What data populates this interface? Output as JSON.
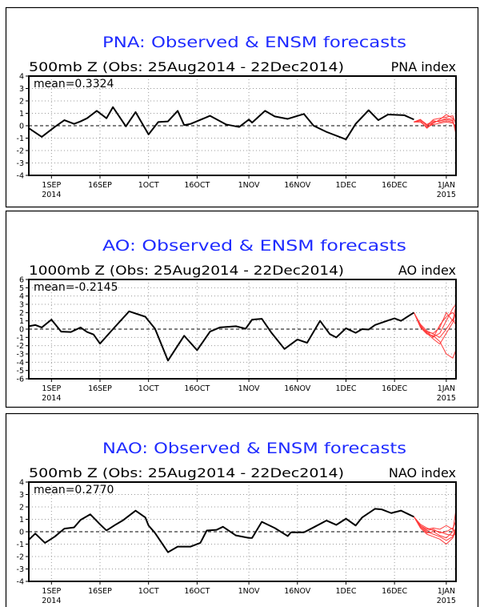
{
  "chart_data": [
    {
      "type": "line",
      "title": "PNA: Observed & ENSM forecasts",
      "subtitle_left": "500mb Z (Obs: 25Aug2014 - 22Dec2014)",
      "subtitle_right": "PNA index",
      "annotation": "mean=0.3324",
      "ylim": [
        -4,
        4
      ],
      "y_ticks": [
        -4,
        -3,
        -2,
        -1,
        0,
        1,
        2,
        3,
        4
      ],
      "xlim": [
        "2014-08-25",
        "2015-01-04"
      ],
      "x_ticks": [
        {
          "date": "2014-09-01",
          "label": "1SEP",
          "year": "2014"
        },
        {
          "date": "2014-09-16",
          "label": "16SEP"
        },
        {
          "date": "2014-10-01",
          "label": "1OCT"
        },
        {
          "date": "2014-10-16",
          "label": "16OCT"
        },
        {
          "date": "2014-11-01",
          "label": "1NOV"
        },
        {
          "date": "2014-11-16",
          "label": "16NOV"
        },
        {
          "date": "2014-12-01",
          "label": "1DEC"
        },
        {
          "date": "2014-12-16",
          "label": "16DEC"
        },
        {
          "date": "2015-01-01",
          "label": "1JAN",
          "year": "2015"
        }
      ],
      "grid": true,
      "observed_color": "#000000",
      "forecast_color": "#ff3b3b",
      "observed": [
        [
          "2014-08-25",
          -0.2
        ],
        [
          "2014-08-29",
          -0.9
        ],
        [
          "2014-09-02",
          -0.1
        ],
        [
          "2014-09-05",
          0.45
        ],
        [
          "2014-09-08",
          0.15
        ],
        [
          "2014-09-10",
          0.35
        ],
        [
          "2014-09-12",
          0.6
        ],
        [
          "2014-09-15",
          1.2
        ],
        [
          "2014-09-18",
          0.6
        ],
        [
          "2014-09-20",
          1.5
        ],
        [
          "2014-09-24",
          -0.05
        ],
        [
          "2014-09-27",
          1.1
        ],
        [
          "2014-10-01",
          -0.7
        ],
        [
          "2014-10-04",
          0.3
        ],
        [
          "2014-10-07",
          0.35
        ],
        [
          "2014-10-10",
          1.2
        ],
        [
          "2014-10-12",
          0.05
        ],
        [
          "2014-10-14",
          0.15
        ],
        [
          "2014-10-20",
          0.8
        ],
        [
          "2014-10-25",
          0.1
        ],
        [
          "2014-10-29",
          -0.1
        ],
        [
          "2014-11-01",
          0.5
        ],
        [
          "2014-11-02",
          0.25
        ],
        [
          "2014-11-06",
          1.2
        ],
        [
          "2014-11-09",
          0.75
        ],
        [
          "2014-11-13",
          0.55
        ],
        [
          "2014-11-18",
          0.95
        ],
        [
          "2014-11-21",
          0.0
        ],
        [
          "2014-11-25",
          -0.5
        ],
        [
          "2014-12-01",
          -1.1
        ],
        [
          "2014-12-04",
          0.15
        ],
        [
          "2014-12-08",
          1.25
        ],
        [
          "2014-12-11",
          0.45
        ],
        [
          "2014-12-14",
          0.9
        ],
        [
          "2014-12-19",
          0.85
        ],
        [
          "2014-12-22",
          0.5
        ]
      ],
      "forecast_dates": [
        "2014-12-22",
        "2014-12-24",
        "2014-12-26",
        "2014-12-28",
        "2014-12-30",
        "2015-01-01",
        "2015-01-03",
        "2015-01-04"
      ],
      "forecast_members": [
        [
          0.3,
          0.5,
          0.0,
          0.3,
          0.4,
          0.6,
          0.5,
          -0.7
        ],
        [
          0.3,
          0.4,
          -0.2,
          0.2,
          0.5,
          0.9,
          0.6,
          0.3
        ],
        [
          0.3,
          0.5,
          0.1,
          0.4,
          0.3,
          0.4,
          0.3,
          -0.3
        ],
        [
          0.3,
          0.3,
          -0.1,
          0.1,
          0.2,
          0.3,
          0.2,
          0.0
        ],
        [
          0.3,
          0.5,
          0.0,
          0.5,
          0.6,
          0.7,
          0.8,
          0.1
        ],
        [
          0.3,
          0.4,
          -0.2,
          0.3,
          0.4,
          0.5,
          0.4,
          -0.5
        ]
      ]
    },
    {
      "type": "line",
      "title": "AO: Observed & ENSM forecasts",
      "subtitle_left": "1000mb Z (Obs: 25Aug2014 - 22Dec2014)",
      "subtitle_right": "AO index",
      "annotation": "mean=-0.2145",
      "ylim": [
        -6,
        6
      ],
      "y_ticks": [
        -6,
        -5,
        -4,
        -3,
        -2,
        -1,
        0,
        1,
        2,
        3,
        4,
        5,
        6
      ],
      "xlim": [
        "2014-08-25",
        "2015-01-04"
      ],
      "x_ticks": [
        {
          "date": "2014-09-01",
          "label": "1SEP",
          "year": "2014"
        },
        {
          "date": "2014-09-16",
          "label": "16SEP"
        },
        {
          "date": "2014-10-01",
          "label": "1OCT"
        },
        {
          "date": "2014-10-16",
          "label": "16OCT"
        },
        {
          "date": "2014-11-01",
          "label": "1NOV"
        },
        {
          "date": "2014-11-16",
          "label": "16NOV"
        },
        {
          "date": "2014-12-01",
          "label": "1DEC"
        },
        {
          "date": "2014-12-16",
          "label": "16DEC"
        },
        {
          "date": "2015-01-01",
          "label": "1JAN",
          "year": "2015"
        }
      ],
      "grid": true,
      "observed_color": "#000000",
      "forecast_color": "#ff3b3b",
      "observed": [
        [
          "2014-08-25",
          0.35
        ],
        [
          "2014-08-27",
          0.5
        ],
        [
          "2014-08-29",
          0.2
        ],
        [
          "2014-09-01",
          1.15
        ],
        [
          "2014-09-04",
          -0.3
        ],
        [
          "2014-09-07",
          -0.35
        ],
        [
          "2014-09-10",
          0.2
        ],
        [
          "2014-09-12",
          -0.35
        ],
        [
          "2014-09-14",
          -0.65
        ],
        [
          "2014-09-16",
          -1.75
        ],
        [
          "2014-09-20",
          0.0
        ],
        [
          "2014-09-25",
          2.15
        ],
        [
          "2014-09-30",
          1.5
        ],
        [
          "2014-10-03",
          0.05
        ],
        [
          "2014-10-07",
          -3.8
        ],
        [
          "2014-10-12",
          -0.8
        ],
        [
          "2014-10-16",
          -2.55
        ],
        [
          "2014-10-20",
          -0.3
        ],
        [
          "2014-10-23",
          0.2
        ],
        [
          "2014-10-28",
          0.35
        ],
        [
          "2014-10-31",
          0.05
        ],
        [
          "2014-11-02",
          1.15
        ],
        [
          "2014-11-05",
          1.25
        ],
        [
          "2014-11-08",
          -0.45
        ],
        [
          "2014-11-12",
          -2.4
        ],
        [
          "2014-11-16",
          -1.25
        ],
        [
          "2014-11-19",
          -1.65
        ],
        [
          "2014-11-23",
          1.0
        ],
        [
          "2014-11-26",
          -0.6
        ],
        [
          "2014-11-28",
          -1.0
        ],
        [
          "2014-12-01",
          0.1
        ],
        [
          "2014-12-04",
          -0.45
        ],
        [
          "2014-12-06",
          0.0
        ],
        [
          "2014-12-08",
          -0.05
        ],
        [
          "2014-12-10",
          0.5
        ],
        [
          "2014-12-14",
          1.05
        ],
        [
          "2014-12-16",
          1.3
        ],
        [
          "2014-12-18",
          1.0
        ],
        [
          "2014-12-22",
          2.0
        ]
      ],
      "forecast_dates": [
        "2014-12-22",
        "2014-12-24",
        "2014-12-26",
        "2014-12-28",
        "2014-12-30",
        "2015-01-01",
        "2015-01-03",
        "2015-01-04"
      ],
      "forecast_members": [
        [
          2.0,
          0.5,
          -0.5,
          -0.9,
          -0.5,
          1.0,
          2.5,
          3.0
        ],
        [
          2.0,
          0.3,
          -0.3,
          -1.0,
          0.5,
          1.5,
          2.0,
          1.5
        ],
        [
          2.0,
          0.2,
          -0.6,
          -0.8,
          -1.5,
          -3.0,
          -3.5,
          -2.5
        ],
        [
          2.0,
          0.4,
          -0.4,
          -0.5,
          0.2,
          2.0,
          1.0,
          2.8
        ],
        [
          2.0,
          0.6,
          -0.2,
          -0.6,
          -1.0,
          0.0,
          1.2,
          0.5
        ],
        [
          2.0,
          0.3,
          -0.5,
          -1.2,
          -1.8,
          -0.5,
          0.8,
          2.0
        ]
      ]
    },
    {
      "type": "line",
      "title": "NAO: Observed & ENSM forecasts",
      "subtitle_left": "500mb Z (Obs: 25Aug2014 - 22Dec2014)",
      "subtitle_right": "NAO index",
      "annotation": "mean=0.2770",
      "ylim": [
        -4,
        4
      ],
      "y_ticks": [
        -4,
        -3,
        -2,
        -1,
        0,
        1,
        2,
        3,
        4
      ],
      "xlim": [
        "2014-08-25",
        "2015-01-04"
      ],
      "x_ticks": [
        {
          "date": "2014-09-01",
          "label": "1SEP",
          "year": "2014"
        },
        {
          "date": "2014-09-16",
          "label": "16SEP"
        },
        {
          "date": "2014-10-01",
          "label": "1OCT"
        },
        {
          "date": "2014-10-16",
          "label": "16OCT"
        },
        {
          "date": "2014-11-01",
          "label": "1NOV"
        },
        {
          "date": "2014-11-16",
          "label": "16NOV"
        },
        {
          "date": "2014-12-01",
          "label": "1DEC"
        },
        {
          "date": "2014-12-16",
          "label": "16DEC"
        },
        {
          "date": "2015-01-01",
          "label": "1JAN",
          "year": "2015"
        }
      ],
      "grid": true,
      "observed_color": "#000000",
      "forecast_color": "#ff3b3b",
      "observed": [
        [
          "2014-08-25",
          -0.65
        ],
        [
          "2014-08-27",
          -0.15
        ],
        [
          "2014-08-30",
          -0.9
        ],
        [
          "2014-09-02",
          -0.4
        ],
        [
          "2014-09-05",
          0.25
        ],
        [
          "2014-09-08",
          0.35
        ],
        [
          "2014-09-10",
          0.95
        ],
        [
          "2014-09-13",
          1.4
        ],
        [
          "2014-09-16",
          0.6
        ],
        [
          "2014-09-18",
          0.1
        ],
        [
          "2014-09-21",
          0.6
        ],
        [
          "2014-09-23",
          0.9
        ],
        [
          "2014-09-27",
          1.7
        ],
        [
          "2014-09-30",
          1.15
        ],
        [
          "2014-10-01",
          0.5
        ],
        [
          "2014-10-03",
          -0.1
        ],
        [
          "2014-10-07",
          -1.65
        ],
        [
          "2014-10-10",
          -1.2
        ],
        [
          "2014-10-14",
          -1.2
        ],
        [
          "2014-10-17",
          -0.9
        ],
        [
          "2014-10-19",
          0.1
        ],
        [
          "2014-10-22",
          0.15
        ],
        [
          "2014-10-24",
          0.4
        ],
        [
          "2014-10-28",
          -0.3
        ],
        [
          "2014-11-01",
          -0.5
        ],
        [
          "2014-11-02",
          -0.5
        ],
        [
          "2014-11-05",
          0.8
        ],
        [
          "2014-11-09",
          0.3
        ],
        [
          "2014-11-13",
          -0.35
        ],
        [
          "2014-11-14",
          -0.05
        ],
        [
          "2014-11-18",
          -0.05
        ],
        [
          "2014-11-21",
          0.35
        ],
        [
          "2014-11-25",
          0.9
        ],
        [
          "2014-11-28",
          0.55
        ],
        [
          "2014-12-01",
          1.05
        ],
        [
          "2014-12-04",
          0.5
        ],
        [
          "2014-12-06",
          1.15
        ],
        [
          "2014-12-10",
          1.85
        ],
        [
          "2014-12-12",
          1.8
        ],
        [
          "2014-12-15",
          1.5
        ],
        [
          "2014-12-18",
          1.7
        ],
        [
          "2014-12-22",
          1.2
        ]
      ],
      "forecast_dates": [
        "2014-12-22",
        "2014-12-24",
        "2014-12-26",
        "2014-12-28",
        "2014-12-30",
        "2015-01-01",
        "2015-01-03",
        "2015-01-04"
      ],
      "forecast_members": [
        [
          1.2,
          0.4,
          -0.1,
          0.0,
          -0.3,
          -0.5,
          0.0,
          1.8
        ],
        [
          1.2,
          0.5,
          0.2,
          0.3,
          0.2,
          0.5,
          0.2,
          0.9
        ],
        [
          1.2,
          0.3,
          -0.2,
          -0.4,
          -0.6,
          -1.0,
          -0.5,
          0.2
        ],
        [
          1.2,
          0.6,
          0.3,
          0.1,
          0.0,
          -0.2,
          -0.3,
          -0.2
        ],
        [
          1.2,
          0.4,
          0.0,
          -0.2,
          -0.4,
          -0.7,
          -0.4,
          0.4
        ],
        [
          1.2,
          0.5,
          0.1,
          0.2,
          -0.1,
          0.0,
          0.3,
          -0.3
        ]
      ]
    }
  ]
}
